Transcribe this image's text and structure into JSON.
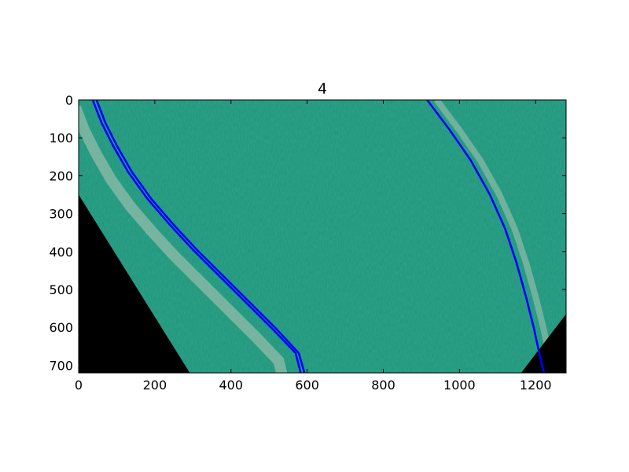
{
  "chart_data": {
    "type": "image-with-line-overlay",
    "title": "4",
    "xlim": [
      0,
      1280
    ],
    "ylim": [
      720,
      0
    ],
    "y_inverted": true,
    "xticks": [
      0,
      200,
      400,
      600,
      800,
      1000,
      1200
    ],
    "yticks": [
      0,
      100,
      200,
      300,
      400,
      500,
      600,
      700
    ],
    "grid": false,
    "legend": "none",
    "image": {
      "description": "warped top-down view of a grassy track",
      "colors": {
        "grass": "#1f9a7d",
        "grass_dark": "#0e6b52",
        "grass_light": "#3bc4a0",
        "path": "#b8c8b8",
        "mask": "#000000"
      },
      "black_regions": [
        {
          "corner": "bottom-left",
          "points": [
            [
              0,
              250
            ],
            [
              0,
              720
            ],
            [
              292,
              720
            ]
          ]
        },
        {
          "corner": "bottom-right",
          "points": [
            [
              1280,
              565
            ],
            [
              1280,
              720
            ],
            [
              1162,
              720
            ]
          ]
        }
      ]
    },
    "series": [
      {
        "color": "#0000ff",
        "kind": "lane-left-a",
        "x": [
          37,
          60,
          90,
          130,
          180,
          240,
          300,
          370,
          440,
          510,
          570,
          583
        ],
        "y": [
          0,
          60,
          120,
          190,
          260,
          330,
          395,
          465,
          535,
          605,
          668,
          720
        ]
      },
      {
        "color": "#0000ff",
        "kind": "lane-left-b",
        "x": [
          47,
          70,
          100,
          140,
          190,
          250,
          310,
          380,
          450,
          520,
          578,
          593
        ],
        "y": [
          0,
          60,
          120,
          190,
          260,
          330,
          395,
          465,
          535,
          605,
          668,
          720
        ]
      },
      {
        "color": "#0000ff",
        "kind": "lane-right",
        "x": [
          915,
          975,
          1030,
          1080,
          1120,
          1150,
          1175,
          1195,
          1210,
          1222
        ],
        "y": [
          0,
          80,
          160,
          250,
          340,
          430,
          520,
          600,
          670,
          720
        ]
      }
    ]
  }
}
